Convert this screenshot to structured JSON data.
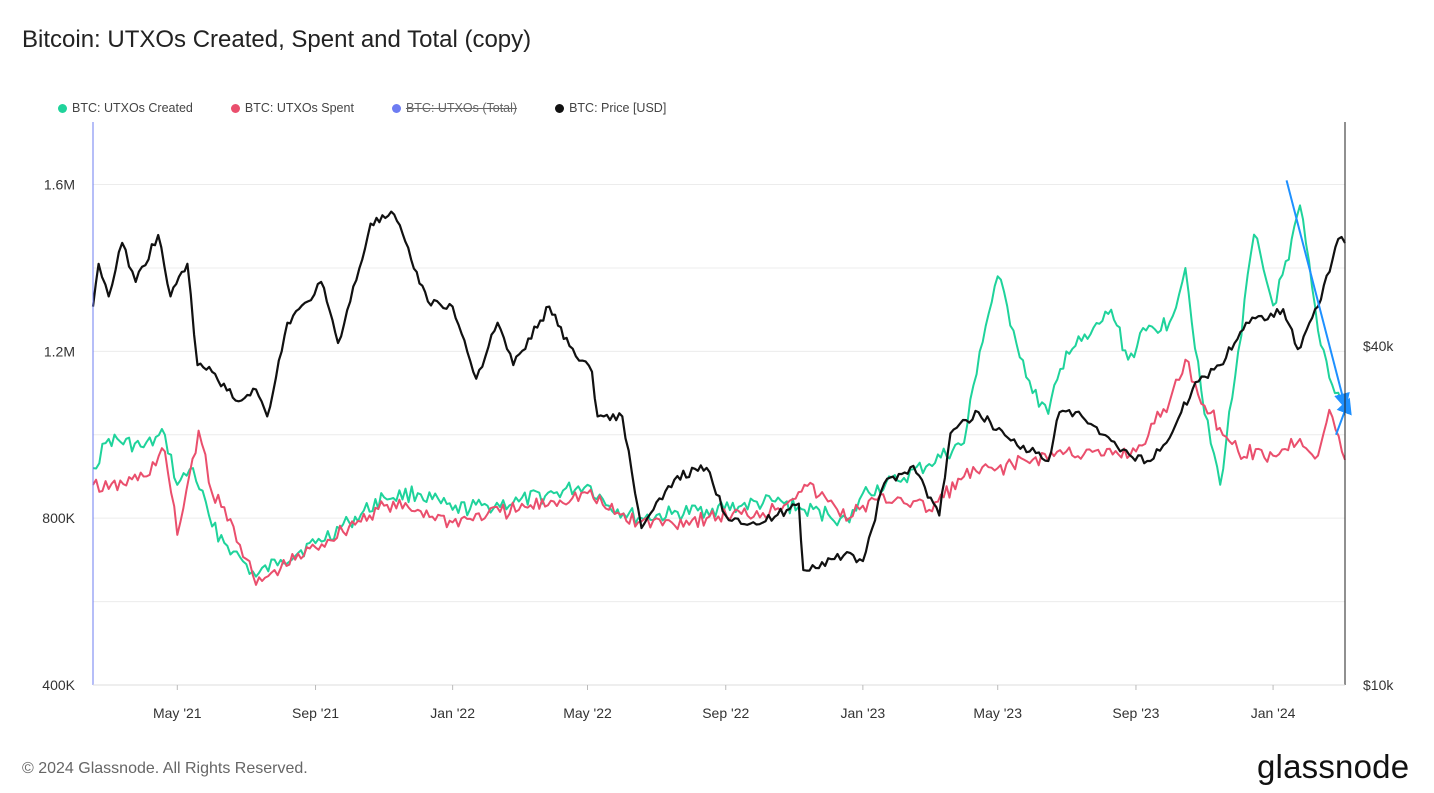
{
  "title": "Bitcoin: UTXOs Created, Spent and Total (copy)",
  "footer": "© 2024 Glassnode. All Rights Reserved.",
  "brand": "glassnode",
  "legend": [
    {
      "label": "BTC: UTXOs Created",
      "color": "#1fd39b",
      "hidden": false
    },
    {
      "label": "BTC: UTXOs Spent",
      "color": "#ea4f6d",
      "hidden": false
    },
    {
      "label": "BTC: UTXOs (Total)",
      "color": "#6d7cf2",
      "hidden": true
    },
    {
      "label": "BTC: Price [USD]",
      "color": "#111111",
      "hidden": false
    }
  ],
  "chart_data": {
    "type": "line",
    "title": "Bitcoin: UTXOs Created, Spent and Total (copy)",
    "x_start": "2021-02-15",
    "x_end": "2024-03-05",
    "x_ticks": [
      {
        "date": "2021-05-01",
        "label": "May '21"
      },
      {
        "date": "2021-09-01",
        "label": "Sep '21"
      },
      {
        "date": "2022-01-01",
        "label": "Jan '22"
      },
      {
        "date": "2022-05-01",
        "label": "May '22"
      },
      {
        "date": "2022-09-01",
        "label": "Sep '22"
      },
      {
        "date": "2023-01-01",
        "label": "Jan '23"
      },
      {
        "date": "2023-05-01",
        "label": "May '23"
      },
      {
        "date": "2023-09-01",
        "label": "Sep '23"
      },
      {
        "date": "2024-01-01",
        "label": "Jan '24"
      }
    ],
    "y_left": {
      "scale": "linear",
      "min": 400000,
      "max": 1750000,
      "ticks": [
        {
          "value": 400000,
          "label": "400K"
        },
        {
          "value": 800000,
          "label": "800K"
        },
        {
          "value": 1200000,
          "label": "1.2M"
        },
        {
          "value": 1600000,
          "label": "1.6M"
        }
      ]
    },
    "y_right": {
      "scale": "log",
      "min": 10000,
      "max": 100000,
      "ticks": [
        {
          "value": 10000,
          "label": "$10k"
        },
        {
          "value": 40000,
          "label": "$40k"
        }
      ]
    },
    "series": [
      {
        "name": "BTC: UTXOs Created",
        "axis": "left",
        "color": "#1fd39b",
        "points": [
          [
            "2021-02-15",
            920000
          ],
          [
            "2021-03-01",
            990000
          ],
          [
            "2021-04-01",
            970000
          ],
          [
            "2021-04-20",
            1000000
          ],
          [
            "2021-05-01",
            880000
          ],
          [
            "2021-05-15",
            920000
          ],
          [
            "2021-06-01",
            780000
          ],
          [
            "2021-06-20",
            720000
          ],
          [
            "2021-07-10",
            660000
          ],
          [
            "2021-08-01",
            700000
          ],
          [
            "2021-09-01",
            740000
          ],
          [
            "2021-10-01",
            790000
          ],
          [
            "2021-11-01",
            850000
          ],
          [
            "2021-12-01",
            860000
          ],
          [
            "2022-01-01",
            820000
          ],
          [
            "2022-02-01",
            830000
          ],
          [
            "2022-03-01",
            840000
          ],
          [
            "2022-04-01",
            860000
          ],
          [
            "2022-05-01",
            880000
          ],
          [
            "2022-05-20",
            830000
          ],
          [
            "2022-06-15",
            800000
          ],
          [
            "2022-07-15",
            810000
          ],
          [
            "2022-08-15",
            820000
          ],
          [
            "2022-09-15",
            830000
          ],
          [
            "2022-10-15",
            840000
          ],
          [
            "2022-11-10",
            820000
          ],
          [
            "2022-12-01",
            810000
          ],
          [
            "2022-12-20",
            790000
          ],
          [
            "2023-01-01",
            860000
          ],
          [
            "2023-02-01",
            890000
          ],
          [
            "2023-03-01",
            930000
          ],
          [
            "2023-04-01",
            980000
          ],
          [
            "2023-04-15",
            1200000
          ],
          [
            "2023-05-01",
            1380000
          ],
          [
            "2023-05-15",
            1250000
          ],
          [
            "2023-06-01",
            1100000
          ],
          [
            "2023-06-15",
            1050000
          ],
          [
            "2023-07-01",
            1200000
          ],
          [
            "2023-07-20",
            1230000
          ],
          [
            "2023-08-10",
            1300000
          ],
          [
            "2023-08-25",
            1180000
          ],
          [
            "2023-09-10",
            1250000
          ],
          [
            "2023-10-01",
            1270000
          ],
          [
            "2023-10-15",
            1400000
          ],
          [
            "2023-11-01",
            1050000
          ],
          [
            "2023-11-15",
            880000
          ],
          [
            "2023-12-01",
            1200000
          ],
          [
            "2023-12-15",
            1480000
          ],
          [
            "2024-01-01",
            1310000
          ],
          [
            "2024-01-15",
            1420000
          ],
          [
            "2024-01-25",
            1550000
          ],
          [
            "2024-02-10",
            1250000
          ],
          [
            "2024-02-25",
            1100000
          ],
          [
            "2024-03-05",
            1080000
          ]
        ]
      },
      {
        "name": "BTC: UTXOs Spent",
        "axis": "left",
        "color": "#ea4f6d",
        "points": [
          [
            "2021-02-15",
            880000
          ],
          [
            "2021-03-01",
            870000
          ],
          [
            "2021-04-01",
            900000
          ],
          [
            "2021-04-20",
            960000
          ],
          [
            "2021-05-01",
            760000
          ],
          [
            "2021-05-20",
            1010000
          ],
          [
            "2021-06-01",
            860000
          ],
          [
            "2021-06-20",
            780000
          ],
          [
            "2021-07-10",
            640000
          ],
          [
            "2021-08-01",
            680000
          ],
          [
            "2021-09-01",
            730000
          ],
          [
            "2021-10-01",
            780000
          ],
          [
            "2021-11-01",
            830000
          ],
          [
            "2021-12-01",
            820000
          ],
          [
            "2022-01-01",
            790000
          ],
          [
            "2022-02-01",
            810000
          ],
          [
            "2022-03-01",
            820000
          ],
          [
            "2022-04-01",
            840000
          ],
          [
            "2022-05-01",
            860000
          ],
          [
            "2022-05-20",
            820000
          ],
          [
            "2022-06-15",
            790000
          ],
          [
            "2022-07-15",
            790000
          ],
          [
            "2022-08-15",
            800000
          ],
          [
            "2022-09-15",
            810000
          ],
          [
            "2022-10-15",
            820000
          ],
          [
            "2022-11-10",
            880000
          ],
          [
            "2022-12-01",
            840000
          ],
          [
            "2022-12-20",
            800000
          ],
          [
            "2023-01-01",
            830000
          ],
          [
            "2023-02-01",
            850000
          ],
          [
            "2023-03-01",
            820000
          ],
          [
            "2023-04-01",
            900000
          ],
          [
            "2023-05-01",
            920000
          ],
          [
            "2023-06-01",
            940000
          ],
          [
            "2023-07-01",
            960000
          ],
          [
            "2023-08-01",
            950000
          ],
          [
            "2023-09-01",
            960000
          ],
          [
            "2023-10-01",
            1080000
          ],
          [
            "2023-10-15",
            1180000
          ],
          [
            "2023-11-01",
            1070000
          ],
          [
            "2023-12-01",
            960000
          ],
          [
            "2024-01-01",
            950000
          ],
          [
            "2024-01-25",
            990000
          ],
          [
            "2024-02-10",
            950000
          ],
          [
            "2024-02-20",
            1060000
          ],
          [
            "2024-03-05",
            940000
          ]
        ]
      },
      {
        "name": "BTC: Price [USD]",
        "axis": "right",
        "color": "#111111",
        "points": [
          [
            "2021-02-15",
            47000
          ],
          [
            "2021-02-20",
            56000
          ],
          [
            "2021-03-01",
            49000
          ],
          [
            "2021-03-13",
            61000
          ],
          [
            "2021-03-25",
            52000
          ],
          [
            "2021-04-14",
            63000
          ],
          [
            "2021-04-25",
            49000
          ],
          [
            "2021-05-10",
            56000
          ],
          [
            "2021-05-19",
            37000
          ],
          [
            "2021-06-01",
            36000
          ],
          [
            "2021-06-22",
            32000
          ],
          [
            "2021-07-10",
            33500
          ],
          [
            "2021-07-20",
            30000
          ],
          [
            "2021-08-07",
            44000
          ],
          [
            "2021-08-25",
            48000
          ],
          [
            "2021-09-06",
            52000
          ],
          [
            "2021-09-21",
            40500
          ],
          [
            "2021-10-10",
            55000
          ],
          [
            "2021-10-20",
            66000
          ],
          [
            "2021-11-10",
            68500
          ],
          [
            "2021-11-25",
            57000
          ],
          [
            "2021-12-10",
            48000
          ],
          [
            "2022-01-01",
            47000
          ],
          [
            "2022-01-22",
            35000
          ],
          [
            "2022-02-10",
            44000
          ],
          [
            "2022-02-24",
            37000
          ],
          [
            "2022-03-28",
            47000
          ],
          [
            "2022-04-15",
            40000
          ],
          [
            "2022-05-05",
            36000
          ],
          [
            "2022-05-10",
            30000
          ],
          [
            "2022-06-01",
            30000
          ],
          [
            "2022-06-18",
            19000
          ],
          [
            "2022-07-20",
            23500
          ],
          [
            "2022-08-15",
            24300
          ],
          [
            "2022-09-01",
            20000
          ],
          [
            "2022-10-01",
            19300
          ],
          [
            "2022-11-05",
            21000
          ],
          [
            "2022-11-09",
            16000
          ],
          [
            "2022-12-15",
            17000
          ],
          [
            "2023-01-01",
            16600
          ],
          [
            "2023-01-20",
            22800
          ],
          [
            "2023-02-15",
            24500
          ],
          [
            "2023-03-10",
            20000
          ],
          [
            "2023-03-20",
            28000
          ],
          [
            "2023-04-14",
            30500
          ],
          [
            "2023-05-10",
            27500
          ],
          [
            "2023-06-15",
            25000
          ],
          [
            "2023-06-25",
            30500
          ],
          [
            "2023-07-15",
            30000
          ],
          [
            "2023-08-18",
            26000
          ],
          [
            "2023-09-11",
            25000
          ],
          [
            "2023-10-01",
            27500
          ],
          [
            "2023-10-24",
            34500
          ],
          [
            "2023-11-15",
            37000
          ],
          [
            "2023-12-08",
            44000
          ],
          [
            "2024-01-10",
            46500
          ],
          [
            "2024-01-23",
            39500
          ],
          [
            "2024-02-10",
            47000
          ],
          [
            "2024-02-28",
            62000
          ],
          [
            "2024-03-05",
            61000
          ]
        ]
      }
    ],
    "annotations": [
      {
        "type": "arrow",
        "color": "#1e90ff",
        "from": [
          "2024-01-13",
          1610000
        ],
        "to": [
          "2024-03-05",
          1070000
        ]
      },
      {
        "type": "arrow",
        "color": "#1e90ff",
        "from": [
          "2024-02-26",
          1000000
        ],
        "to": [
          "2024-03-08",
          1080000
        ]
      }
    ]
  }
}
